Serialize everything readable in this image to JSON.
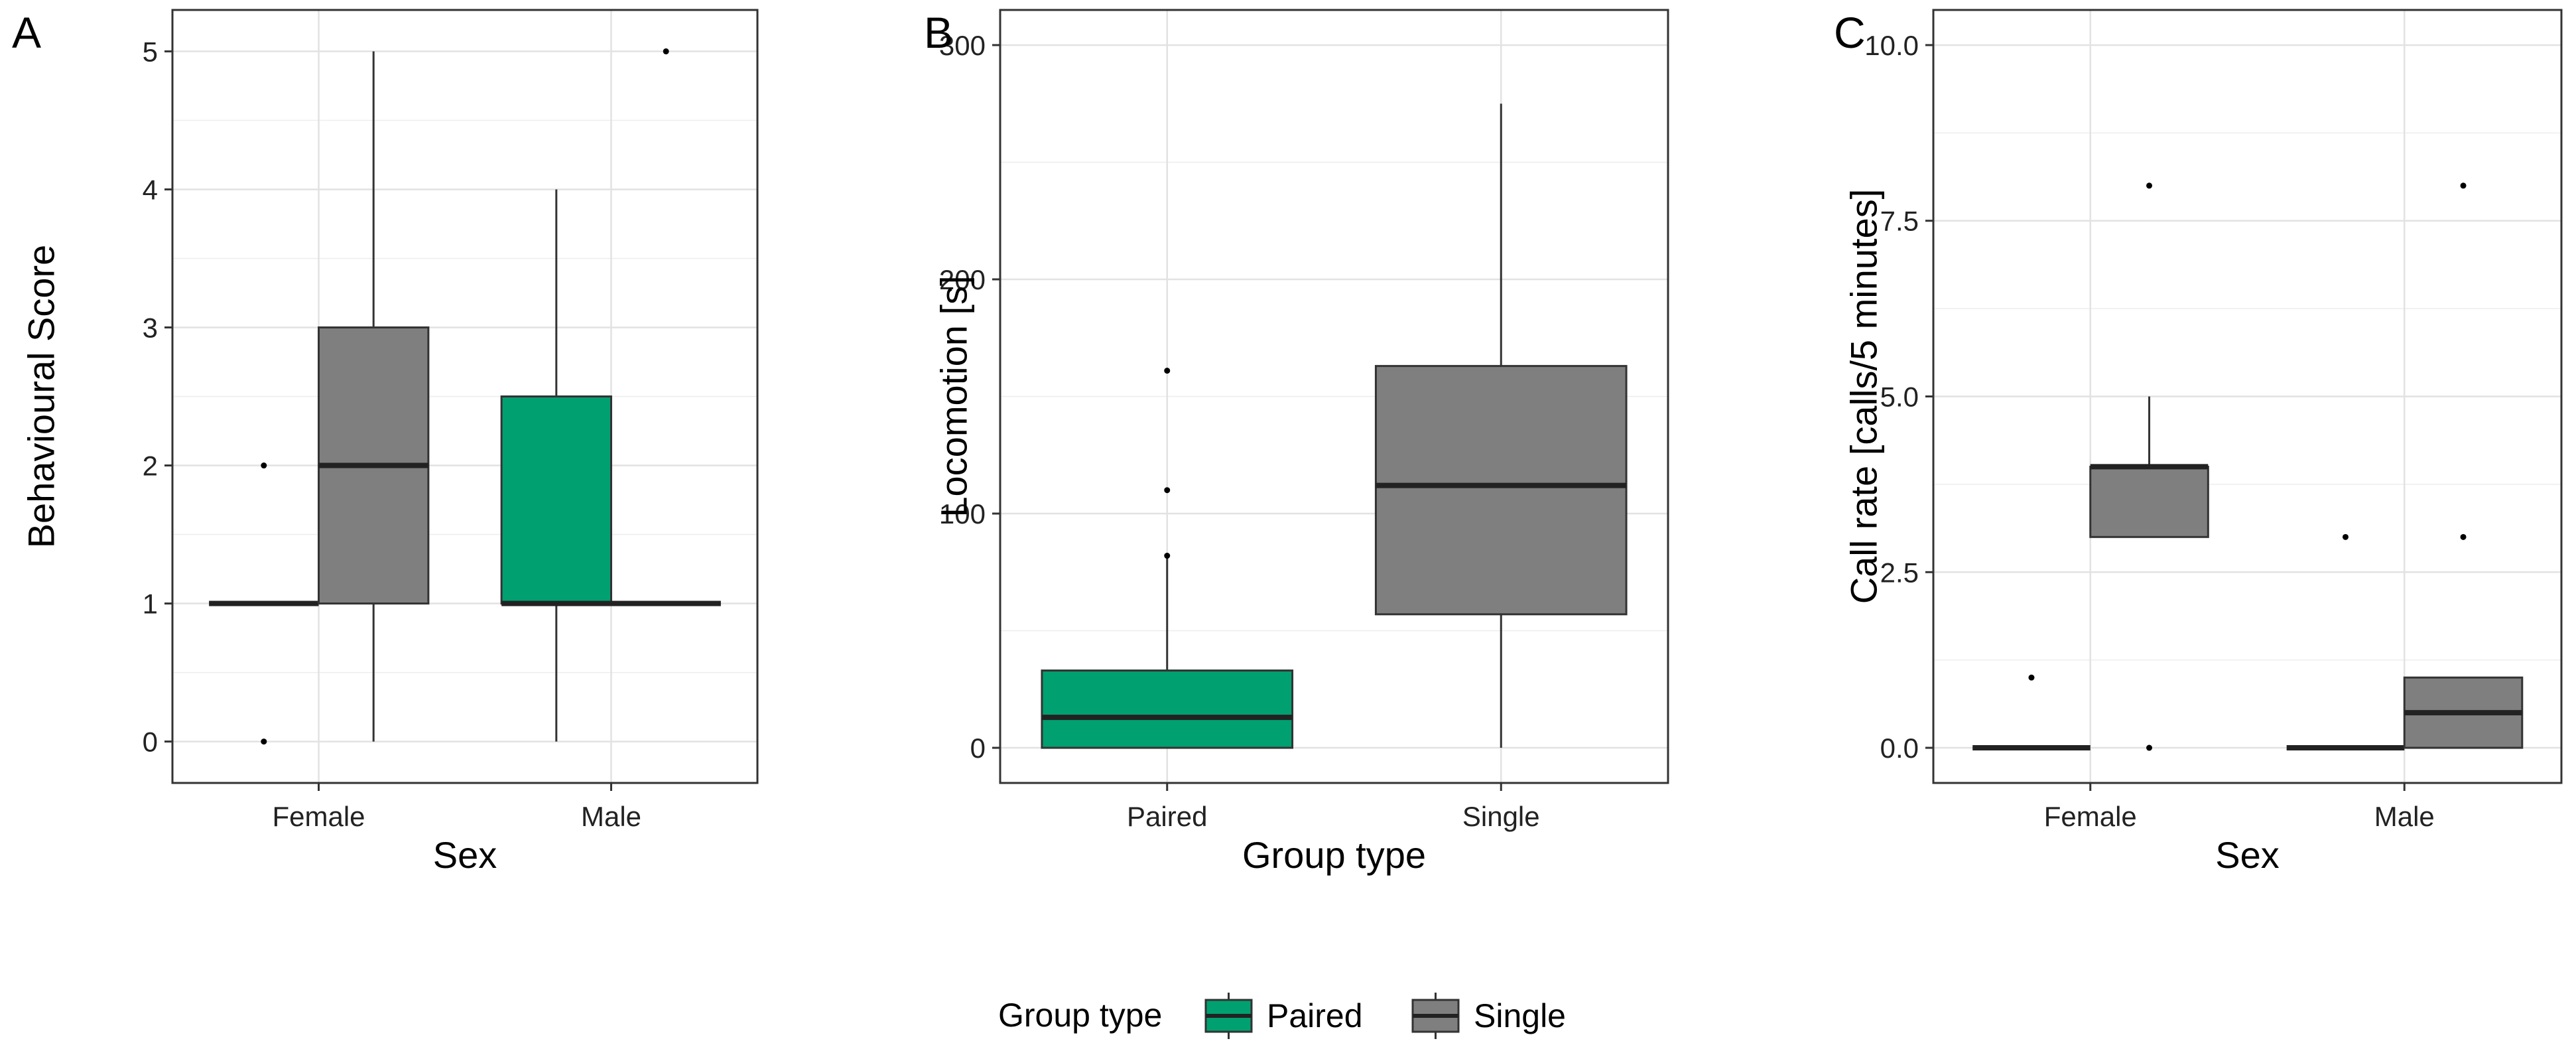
{
  "figure": {
    "legend": {
      "title": "Group type",
      "entries": [
        {
          "label": "Paired",
          "color": "#00A070"
        },
        {
          "label": "Single",
          "color": "#7F7F7F"
        }
      ]
    }
  },
  "chart_data": [
    {
      "panel_label": "A",
      "type": "box",
      "xlabel": "Sex",
      "ylabel": "Behavioural Score",
      "categories": [
        "Female",
        "Male"
      ],
      "ylim": [
        -0.3,
        5.3
      ],
      "yticks": [
        0,
        1,
        2,
        3,
        4,
        5
      ],
      "ytick_labels": [
        "0",
        "1",
        "2",
        "3",
        "4",
        "5"
      ],
      "series": [
        {
          "name": "Paired",
          "color": "#00A070",
          "boxes": [
            {
              "category": "Female",
              "whisker_low": 1,
              "q1": 1,
              "median": 1,
              "q3": 1,
              "whisker_high": 1,
              "outliers": [
                0,
                2
              ]
            },
            {
              "category": "Male",
              "whisker_low": 0,
              "q1": 1,
              "median": 1,
              "q3": 2.5,
              "whisker_high": 4,
              "outliers": []
            }
          ]
        },
        {
          "name": "Single",
          "color": "#7F7F7F",
          "boxes": [
            {
              "category": "Female",
              "whisker_low": 0,
              "q1": 1,
              "median": 2,
              "q3": 3,
              "whisker_high": 5,
              "outliers": []
            },
            {
              "category": "Male",
              "whisker_low": 1,
              "q1": 1,
              "median": 1,
              "q3": 1,
              "whisker_high": 1,
              "outliers": [
                5
              ]
            }
          ]
        }
      ]
    },
    {
      "panel_label": "B",
      "type": "box",
      "xlabel": "Group type",
      "ylabel": "Locomotion [s]",
      "categories": [
        "Paired",
        "Single"
      ],
      "ylim": [
        -15,
        315
      ],
      "yticks": [
        0,
        100,
        200,
        300
      ],
      "ytick_labels": [
        "0",
        "100",
        "200",
        "300"
      ],
      "series": [
        {
          "name": "Paired",
          "color": "#00A070",
          "boxes": [
            {
              "category": "Paired",
              "whisker_low": 0,
              "q1": 0,
              "median": 13,
              "q3": 33,
              "whisker_high": 81,
              "outliers": [
                82,
                110,
                161
              ]
            }
          ]
        },
        {
          "name": "Single",
          "color": "#7F7F7F",
          "boxes": [
            {
              "category": "Single",
              "whisker_low": 0,
              "q1": 57,
              "median": 112,
              "q3": 163,
              "whisker_high": 275,
              "outliers": []
            }
          ]
        }
      ]
    },
    {
      "panel_label": "C",
      "type": "box",
      "xlabel": "Sex",
      "ylabel": "Call rate [calls/5 minutes]",
      "categories": [
        "Female",
        "Male"
      ],
      "ylim": [
        -0.5,
        10.5
      ],
      "yticks": [
        0,
        2.5,
        5,
        7.5,
        10
      ],
      "ytick_labels": [
        "0.0",
        "2.5",
        "5.0",
        "7.5",
        "10.0"
      ],
      "series": [
        {
          "name": "Paired",
          "color": "#00A070",
          "boxes": [
            {
              "category": "Female",
              "whisker_low": 0,
              "q1": 0,
              "median": 0,
              "q3": 0,
              "whisker_high": 0,
              "outliers": [
                1
              ]
            },
            {
              "category": "Male",
              "whisker_low": 0,
              "q1": 0,
              "median": 0,
              "q3": 0,
              "whisker_high": 0,
              "outliers": [
                3
              ]
            }
          ]
        },
        {
          "name": "Single",
          "color": "#7F7F7F",
          "boxes": [
            {
              "category": "Female",
              "whisker_low": 3,
              "q1": 3,
              "median": 4,
              "q3": 4,
              "whisker_high": 5,
              "outliers": [
                0,
                8
              ]
            },
            {
              "category": "Male",
              "whisker_low": 0,
              "q1": 0,
              "median": 0.5,
              "q3": 1,
              "whisker_high": 1,
              "outliers": [
                3,
                8
              ]
            }
          ]
        }
      ]
    }
  ]
}
